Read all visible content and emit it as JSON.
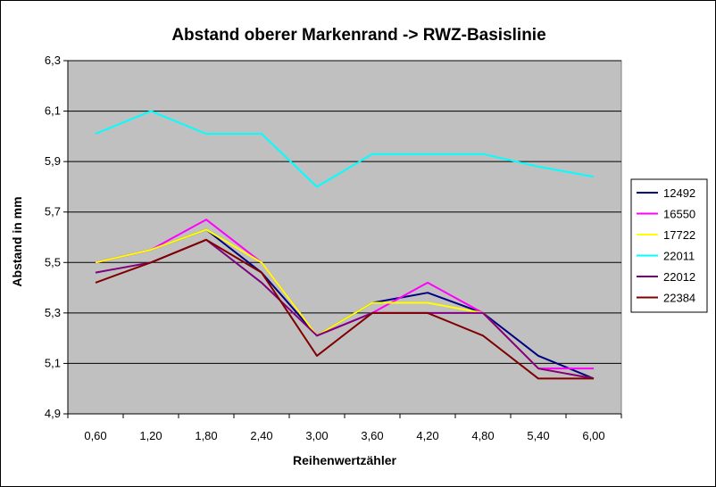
{
  "chart_data": {
    "type": "line",
    "title": "Abstand oberer Markenrand -> RWZ-Basislinie",
    "xlabel": "Reihenwertzähler",
    "ylabel": "Abstand in mm",
    "categories": [
      "0,60",
      "1,20",
      "1,80",
      "2,40",
      "3,00",
      "3,60",
      "4,20",
      "4,80",
      "5,40",
      "6,00"
    ],
    "y_ticks": [
      "4,9",
      "5,1",
      "5,3",
      "5,5",
      "5,7",
      "5,9",
      "6,1",
      "6,3"
    ],
    "ylim": [
      4.9,
      6.3
    ],
    "grid": "horizontal",
    "legend_position": "right",
    "plot_background": "#c0c0c0",
    "series": [
      {
        "name": "12492",
        "color": "#000080",
        "values": [
          5.5,
          5.55,
          5.63,
          5.46,
          5.21,
          5.34,
          5.38,
          5.3,
          5.13,
          5.04
        ]
      },
      {
        "name": "16550",
        "color": "#ff00ff",
        "values": [
          5.5,
          5.55,
          5.67,
          5.5,
          5.21,
          5.3,
          5.42,
          5.3,
          5.08,
          5.08
        ]
      },
      {
        "name": "17722",
        "color": "#ffff00",
        "values": [
          5.5,
          5.55,
          5.63,
          5.5,
          5.21,
          5.34,
          5.34,
          5.3,
          5.08,
          5.04
        ]
      },
      {
        "name": "22011",
        "color": "#00ffff",
        "values": [
          6.01,
          6.1,
          6.01,
          6.01,
          5.8,
          5.93,
          5.93,
          5.93,
          5.88,
          5.84
        ]
      },
      {
        "name": "22012",
        "color": "#800080",
        "values": [
          5.46,
          5.5,
          5.59,
          5.42,
          5.21,
          5.3,
          5.3,
          5.3,
          5.08,
          5.04
        ]
      },
      {
        "name": "22384",
        "color": "#800000",
        "values": [
          5.42,
          5.5,
          5.59,
          5.46,
          5.13,
          5.3,
          5.3,
          5.21,
          5.04,
          5.04
        ]
      }
    ]
  }
}
